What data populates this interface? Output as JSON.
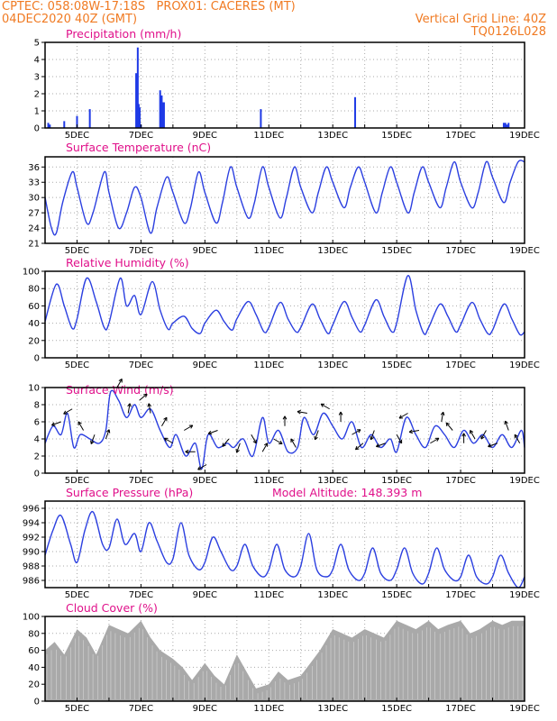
{
  "header": {
    "source": "CPTEC:",
    "location": "058:08W-17:18S   PROX01: CACERES (MT)",
    "run": "04DEC2020 40Z (GMT)",
    "grid_line": "Vertical Grid Line: 40Z",
    "code": "TQ0126L028"
  },
  "x_axis": {
    "start_day": 4.0,
    "end_day": 19.0,
    "tick_labels": [
      "5DEC",
      "7DEC",
      "9DEC",
      "11DEC",
      "13DEC",
      "15DEC",
      "17DEC",
      "19DEC"
    ]
  },
  "colors": {
    "line": "#2b3fe0",
    "bar": "#1f3ae6",
    "cloud": "#a9a9a9",
    "arrow": "#000000",
    "title": "#e0108a",
    "header": "#f07a22"
  },
  "panels": {
    "precip_title": "Precipitation (mm/h)",
    "temp_title": "Surface Temperature (nC)",
    "rh_title": "Relative Humidity (%)",
    "wind_title": "Surface Wind (m/s)",
    "pres_title": "Surface Pressure (hPa)",
    "pres_extra": "Model Altitude: 148.393 m",
    "cloud_title": "Cloud Cover (%)"
  },
  "chart_data": [
    {
      "type": "bar",
      "title": "Precipitation (mm/h)",
      "ylim": [
        0,
        5
      ],
      "yticks": [
        0,
        1,
        2,
        3,
        4,
        5
      ],
      "x": [
        4.1,
        4.15,
        4.6,
        5.0,
        5.4,
        6.85,
        6.9,
        6.93,
        6.96,
        7.0,
        7.6,
        7.65,
        7.68,
        7.72,
        10.75,
        13.7,
        18.35,
        18.4,
        18.45,
        18.5
      ],
      "values": [
        0.3,
        0.2,
        0.4,
        0.7,
        1.1,
        3.2,
        4.7,
        1.4,
        1.2,
        0.2,
        2.2,
        1.9,
        1.5,
        1.5,
        1.1,
        1.8,
        0.3,
        0.3,
        0.2,
        0.3
      ]
    },
    {
      "type": "line",
      "title": "Surface Temperature (nC)",
      "ylim": [
        21,
        38
      ],
      "yticks": [
        21,
        24,
        27,
        30,
        33,
        36
      ],
      "x": [
        4.0,
        4.2,
        4.35,
        4.55,
        4.85,
        5.0,
        5.3,
        5.5,
        5.85,
        6.0,
        6.3,
        6.55,
        6.8,
        7.0,
        7.3,
        7.5,
        7.8,
        8.0,
        8.35,
        8.55,
        8.8,
        9.0,
        9.35,
        9.55,
        9.8,
        10.0,
        10.35,
        10.55,
        10.8,
        11.0,
        11.35,
        11.55,
        11.8,
        12.0,
        12.35,
        12.55,
        12.8,
        13.0,
        13.35,
        13.55,
        13.8,
        14.0,
        14.35,
        14.55,
        14.8,
        15.0,
        15.35,
        15.55,
        15.8,
        16.0,
        16.35,
        16.55,
        16.8,
        17.0,
        17.35,
        17.55,
        17.8,
        18.0,
        18.35,
        18.55,
        18.8,
        19.0
      ],
      "values": [
        30,
        24,
        23,
        29,
        35,
        32,
        25,
        27,
        35,
        31,
        24,
        27,
        32,
        30,
        23,
        28,
        34,
        31,
        25,
        28,
        35,
        31,
        25,
        29,
        36,
        32,
        26,
        29,
        36,
        32,
        26,
        30,
        36,
        32,
        27,
        31,
        36,
        33,
        28,
        32,
        36,
        33,
        27,
        31,
        36,
        33,
        27,
        31,
        36,
        33,
        28,
        32,
        37,
        33,
        28,
        31,
        37,
        34,
        29,
        33,
        37,
        37
      ]
    },
    {
      "type": "line",
      "title": "Relative Humidity (%)",
      "ylim": [
        0,
        100
      ],
      "yticks": [
        0,
        20,
        40,
        60,
        80,
        100
      ],
      "x": [
        4.0,
        4.35,
        4.6,
        4.85,
        5.0,
        5.3,
        5.6,
        5.85,
        6.0,
        6.35,
        6.55,
        6.8,
        7.0,
        7.35,
        7.6,
        7.85,
        8.0,
        8.35,
        8.6,
        8.85,
        9.0,
        9.35,
        9.6,
        9.85,
        10.0,
        10.35,
        10.6,
        10.85,
        11.0,
        11.35,
        11.6,
        11.85,
        12.0,
        12.35,
        12.6,
        12.85,
        13.0,
        13.35,
        13.6,
        13.85,
        14.0,
        14.35,
        14.6,
        14.85,
        15.0,
        15.35,
        15.6,
        15.85,
        16.0,
        16.35,
        16.6,
        16.85,
        17.0,
        17.35,
        17.6,
        17.85,
        18.0,
        18.35,
        18.6,
        18.85,
        19.0
      ],
      "values": [
        42,
        85,
        60,
        34,
        45,
        92,
        65,
        35,
        40,
        92,
        60,
        72,
        50,
        88,
        55,
        33,
        40,
        48,
        34,
        28,
        40,
        55,
        42,
        32,
        45,
        65,
        50,
        30,
        35,
        64,
        45,
        30,
        35,
        62,
        45,
        28,
        38,
        65,
        47,
        30,
        38,
        67,
        48,
        30,
        40,
        95,
        55,
        28,
        35,
        62,
        48,
        30,
        38,
        64,
        45,
        28,
        32,
        62,
        45,
        27,
        30
      ]
    },
    {
      "type": "line",
      "title": "Surface Wind (m/s)",
      "ylim": [
        0,
        10
      ],
      "yticks": [
        0,
        2,
        4,
        6,
        8,
        10
      ],
      "x": [
        4.0,
        4.25,
        4.5,
        4.7,
        4.9,
        5.1,
        5.4,
        5.7,
        5.9,
        6.05,
        6.3,
        6.55,
        6.8,
        7.0,
        7.3,
        7.6,
        7.9,
        8.1,
        8.4,
        8.7,
        8.9,
        9.1,
        9.4,
        9.7,
        9.9,
        10.2,
        10.5,
        10.8,
        11.0,
        11.3,
        11.6,
        11.9,
        12.1,
        12.4,
        12.7,
        13.0,
        13.3,
        13.6,
        13.9,
        14.2,
        14.5,
        14.8,
        15.0,
        15.3,
        15.6,
        15.9,
        16.2,
        16.5,
        16.8,
        17.1,
        17.4,
        17.7,
        18.0,
        18.3,
        18.6,
        18.9,
        19.0
      ],
      "values": [
        3.5,
        5.5,
        4.5,
        7.0,
        3.0,
        4.5,
        4.0,
        3.5,
        5.0,
        9.5,
        8.5,
        6.5,
        8.0,
        6.5,
        7.5,
        5.0,
        3.0,
        4.5,
        2.0,
        3.5,
        0.5,
        4.5,
        3.0,
        3.5,
        3.0,
        4.0,
        2.0,
        6.5,
        3.5,
        5.0,
        2.5,
        3.0,
        6.5,
        4.5,
        7.0,
        5.5,
        4.0,
        6.0,
        3.0,
        4.5,
        3.0,
        4.0,
        2.5,
        6.5,
        4.5,
        3.0,
        5.5,
        4.5,
        3.0,
        5.0,
        3.5,
        4.5,
        3.0,
        4.5,
        3.0,
        5.0,
        3.0
      ]
    },
    {
      "type": "line",
      "title": "Surface Pressure (hPa)",
      "ylim": [
        985,
        997
      ],
      "yticks": [
        986,
        988,
        990,
        992,
        994,
        996
      ],
      "x": [
        4.0,
        4.25,
        4.5,
        4.8,
        5.0,
        5.25,
        5.5,
        5.8,
        6.0,
        6.25,
        6.5,
        6.8,
        7.0,
        7.25,
        7.5,
        7.8,
        8.0,
        8.25,
        8.5,
        8.8,
        9.0,
        9.25,
        9.5,
        9.8,
        10.0,
        10.25,
        10.5,
        10.8,
        11.0,
        11.25,
        11.5,
        11.8,
        12.0,
        12.25,
        12.5,
        12.8,
        13.0,
        13.25,
        13.5,
        13.8,
        14.0,
        14.25,
        14.5,
        14.8,
        15.0,
        15.25,
        15.5,
        15.8,
        16.0,
        16.25,
        16.5,
        16.8,
        17.0,
        17.25,
        17.5,
        17.8,
        18.0,
        18.25,
        18.5,
        18.8,
        19.0
      ],
      "values": [
        989.5,
        993,
        995,
        991,
        988.5,
        993,
        995.5,
        991,
        990.5,
        994.5,
        991,
        992.5,
        990,
        994,
        991.5,
        988.5,
        989,
        994,
        989.5,
        987.5,
        988.5,
        992,
        990,
        987.5,
        988,
        991,
        988,
        986.5,
        987.5,
        991,
        987.5,
        986.5,
        988,
        992.5,
        987.5,
        986.5,
        987.5,
        991,
        987.5,
        986,
        987,
        990.5,
        987,
        986,
        987.5,
        990.5,
        987,
        985.5,
        987,
        990.5,
        987.5,
        986,
        986.5,
        989.5,
        986.5,
        985.5,
        986.5,
        989.5,
        987,
        985,
        986.5
      ]
    },
    {
      "type": "area",
      "title": "Cloud Cover (%)",
      "ylim": [
        0,
        100
      ],
      "yticks": [
        0,
        20,
        40,
        60,
        80,
        100
      ],
      "x": [
        4.0,
        4.3,
        4.6,
        5.0,
        5.3,
        5.6,
        6.0,
        6.3,
        6.6,
        7.0,
        7.3,
        7.6,
        8.0,
        8.3,
        8.6,
        9.0,
        9.3,
        9.6,
        10.0,
        10.3,
        10.6,
        11.0,
        11.3,
        11.6,
        12.0,
        12.3,
        12.6,
        13.0,
        13.3,
        13.6,
        14.0,
        14.3,
        14.6,
        15.0,
        15.3,
        15.6,
        16.0,
        16.3,
        16.6,
        17.0,
        17.3,
        17.6,
        18.0,
        18.3,
        18.6,
        19.0
      ],
      "values": [
        60,
        70,
        55,
        85,
        75,
        55,
        90,
        85,
        80,
        95,
        75,
        60,
        50,
        40,
        25,
        45,
        30,
        20,
        55,
        35,
        15,
        20,
        35,
        25,
        30,
        45,
        60,
        85,
        80,
        75,
        85,
        80,
        75,
        95,
        90,
        85,
        95,
        85,
        90,
        95,
        80,
        85,
        95,
        90,
        95,
        95
      ]
    }
  ]
}
